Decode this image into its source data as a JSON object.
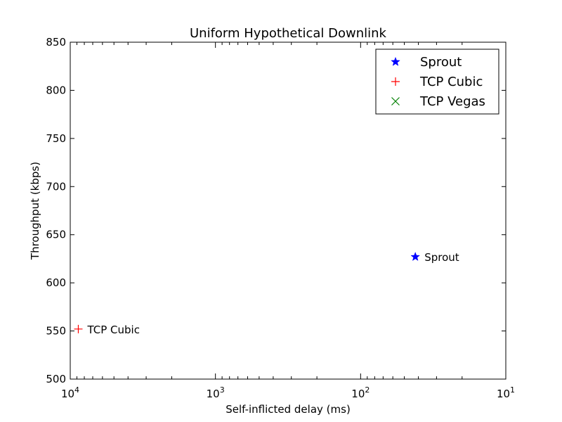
{
  "chart_data": {
    "type": "scatter",
    "title": "Uniform Hypothetical Downlink",
    "xlabel": "Self-inflicted delay (ms)",
    "ylabel": "Throughput (kbps)",
    "x_scale": "log",
    "x_inverted": true,
    "xlim": [
      10000,
      10
    ],
    "ylim": [
      500,
      850
    ],
    "x_ticks": [
      {
        "value": 10000,
        "base": "10",
        "exp": "4"
      },
      {
        "value": 1000,
        "base": "10",
        "exp": "3"
      },
      {
        "value": 100,
        "base": "10",
        "exp": "2"
      },
      {
        "value": 10,
        "base": "10",
        "exp": "1"
      }
    ],
    "y_ticks": [
      500,
      550,
      600,
      650,
      700,
      750,
      800,
      850
    ],
    "grid": false,
    "legend_position": "top-right",
    "series": [
      {
        "name": "Sprout",
        "marker": "star",
        "color": "#0000ff",
        "points": [
          {
            "x": 42,
            "y": 627,
            "label": "Sprout"
          }
        ]
      },
      {
        "name": "TCP Cubic",
        "marker": "plus",
        "color": "#ff0000",
        "points": [
          {
            "x": 8800,
            "y": 552,
            "label": "TCP Cubic"
          }
        ]
      },
      {
        "name": "TCP Vegas",
        "marker": "x",
        "color": "#008000",
        "points": []
      }
    ]
  }
}
